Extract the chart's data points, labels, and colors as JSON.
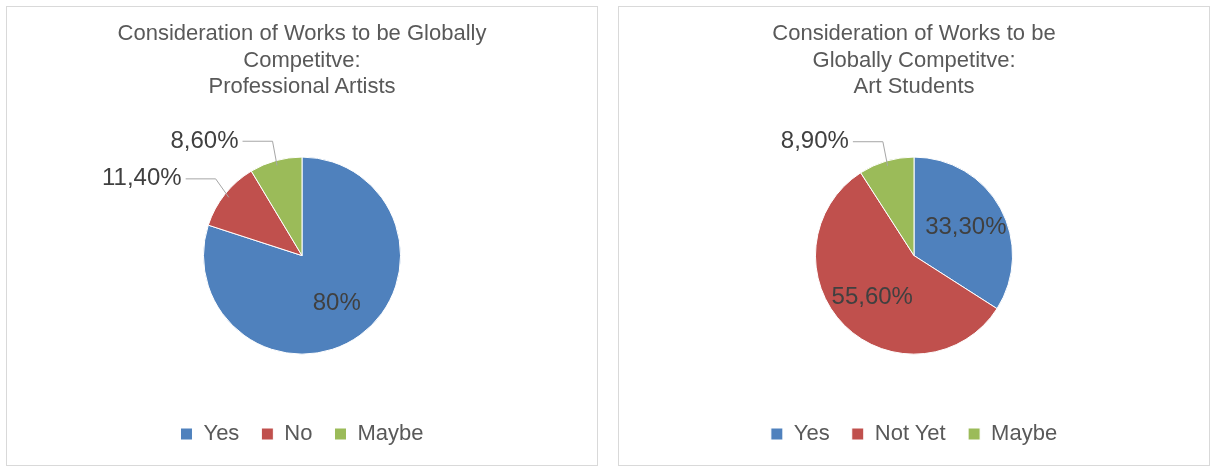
{
  "chart_data": [
    {
      "type": "pie",
      "title": "Consideration of Works to be Globally\nCompetitve:\nProfessional Artists",
      "categories": [
        "Yes",
        "No",
        "Maybe"
      ],
      "values": [
        80,
        11.4,
        8.6
      ],
      "colors": [
        "#4f81bd",
        "#c0504d",
        "#9bbb59"
      ],
      "value_labels": [
        "80%",
        "11,40%",
        "8,60%"
      ],
      "legend": "bottom"
    },
    {
      "type": "pie",
      "title": "Consideration of Works to be\nGlobally Competitve:\nArt Students",
      "categories": [
        "Yes",
        "Not Yet",
        "Maybe"
      ],
      "values": [
        33.3,
        55.6,
        8.9
      ],
      "colors": [
        "#4f81bd",
        "#c0504d",
        "#9bbb59"
      ],
      "value_labels": [
        "33,30%",
        "55,60%",
        "8,90%"
      ],
      "legend": "bottom"
    }
  ]
}
